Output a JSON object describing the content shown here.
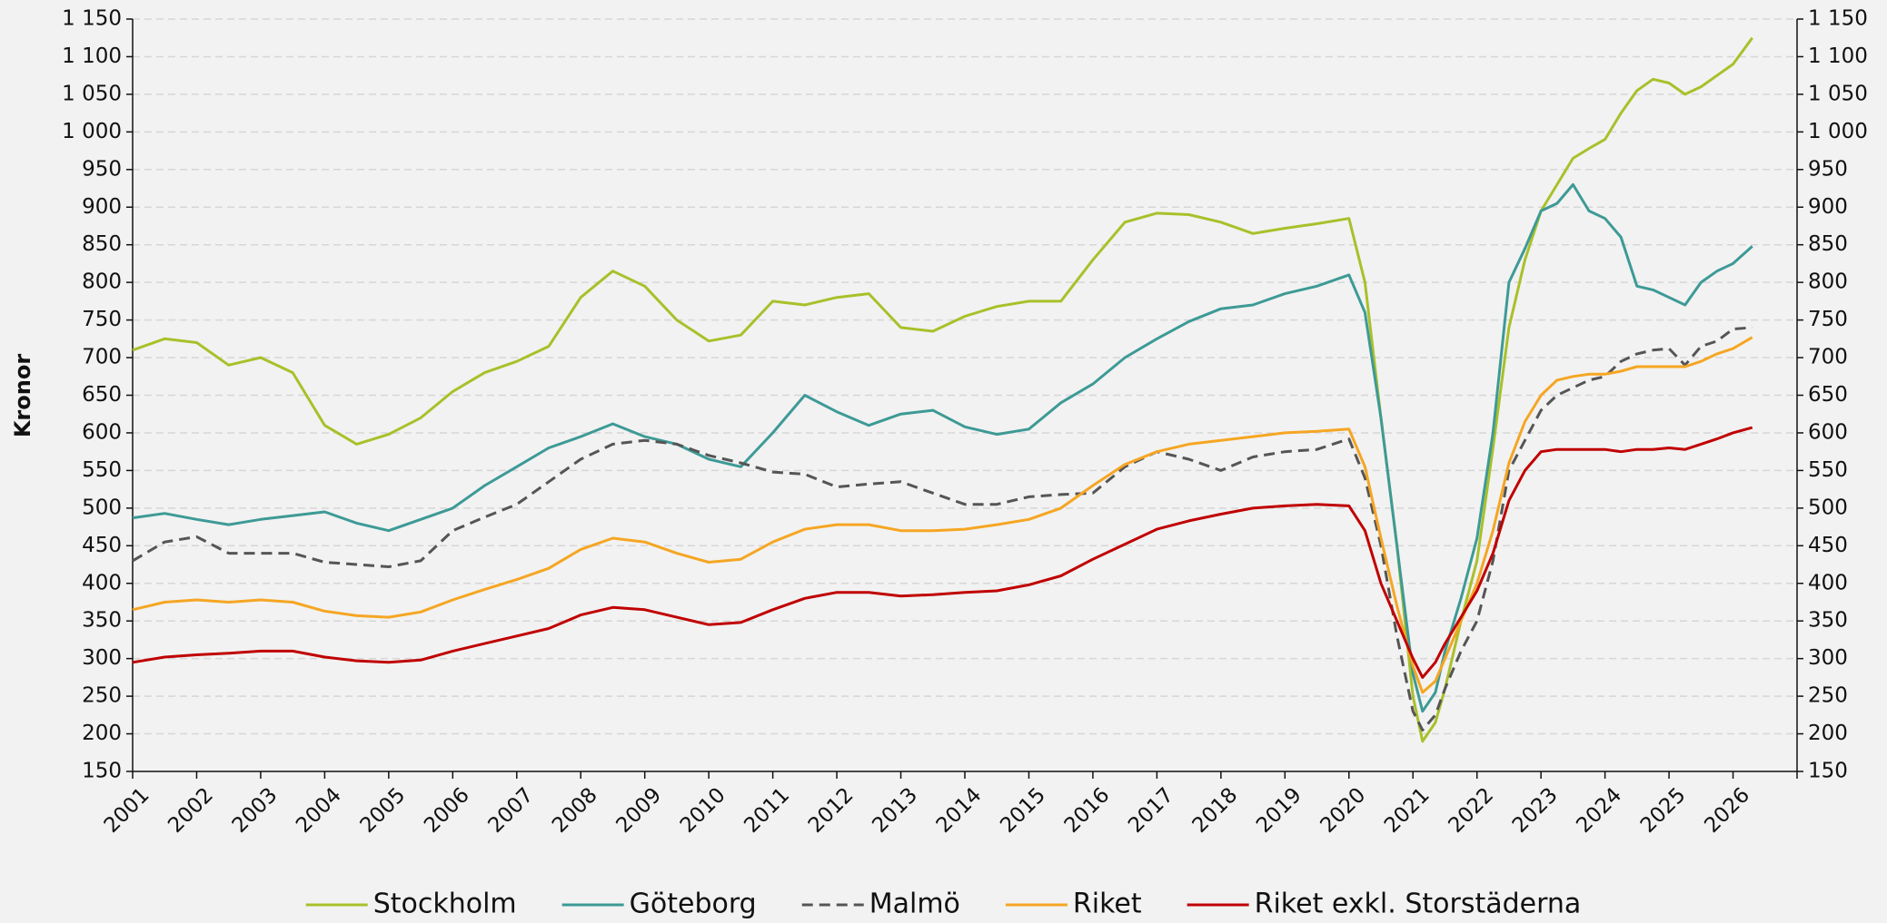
{
  "chart_data": {
    "type": "line",
    "y_label": "Kronor",
    "xlim": [
      2001,
      2027
    ],
    "xticks": [
      2001,
      2002,
      2003,
      2004,
      2005,
      2006,
      2007,
      2008,
      2009,
      2010,
      2011,
      2012,
      2013,
      2014,
      2015,
      2016,
      2017,
      2018,
      2019,
      2020,
      2021,
      2022,
      2023,
      2024,
      2025,
      2026
    ],
    "ylim": [
      150,
      1150
    ],
    "yticks": [
      150,
      200,
      250,
      300,
      350,
      400,
      450,
      500,
      550,
      600,
      650,
      700,
      750,
      800,
      850,
      900,
      950,
      {
        "value": 1000,
        "label": "1 000"
      },
      {
        "value": 1050,
        "label": "1 050"
      },
      {
        "value": 1100,
        "label": "1 100"
      },
      {
        "value": 1150,
        "label": "1 150"
      }
    ],
    "grid": true,
    "legend": "bottom",
    "x": [
      2001,
      2001.5,
      2002,
      2002.5,
      2003,
      2003.5,
      2004,
      2004.5,
      2005,
      2005.5,
      2006,
      2006.5,
      2007,
      2007.5,
      2008,
      2008.5,
      2009,
      2009.5,
      2010,
      2010.5,
      2011,
      2011.5,
      2012,
      2012.5,
      2013,
      2013.5,
      2014,
      2014.5,
      2015,
      2015.5,
      2016,
      2016.5,
      2017,
      2017.5,
      2018,
      2018.5,
      2019,
      2019.5,
      2020,
      2020.25,
      2020.5,
      2020.75,
      2021,
      2021.15,
      2021.35,
      2021.5,
      2021.75,
      2022,
      2022.25,
      2022.5,
      2022.75,
      2023,
      2023.25,
      2023.5,
      2023.75,
      2024,
      2024.25,
      2024.5,
      2024.75,
      2025,
      2025.25,
      2025.5,
      2025.75,
      2026,
      2026.3
    ],
    "series": [
      {
        "name": "Stockholm",
        "color": "#a9c02a",
        "dashed": false,
        "values": [
          710,
          725,
          720,
          690,
          700,
          680,
          610,
          585,
          598,
          620,
          655,
          680,
          695,
          715,
          780,
          815,
          795,
          750,
          722,
          730,
          775,
          770,
          780,
          785,
          740,
          735,
          755,
          768,
          775,
          775,
          830,
          880,
          892,
          890,
          880,
          865,
          872,
          878,
          885,
          800,
          620,
          450,
          250,
          190,
          215,
          260,
          350,
          430,
          580,
          740,
          830,
          895,
          930,
          965,
          978,
          990,
          1025,
          1055,
          1070,
          1065,
          1050,
          1060,
          1075,
          1090,
          1125
        ]
      },
      {
        "name": "Göteborg",
        "color": "#3d9a96",
        "dashed": false,
        "values": [
          487,
          493,
          485,
          478,
          485,
          490,
          495,
          480,
          470,
          485,
          500,
          530,
          555,
          580,
          595,
          612,
          595,
          585,
          565,
          555,
          600,
          650,
          628,
          610,
          625,
          630,
          608,
          598,
          605,
          640,
          665,
          700,
          725,
          748,
          765,
          770,
          785,
          795,
          810,
          760,
          620,
          450,
          280,
          230,
          255,
          310,
          380,
          460,
          600,
          800,
          845,
          895,
          905,
          930,
          895,
          885,
          860,
          795,
          790,
          780,
          770,
          800,
          815,
          825,
          848
        ]
      },
      {
        "name": "Malmö",
        "color": "#555555",
        "dashed": true,
        "values": [
          430,
          455,
          462,
          440,
          440,
          440,
          428,
          425,
          422,
          430,
          470,
          488,
          505,
          535,
          565,
          585,
          590,
          585,
          570,
          560,
          548,
          545,
          528,
          532,
          535,
          520,
          505,
          505,
          515,
          518,
          520,
          555,
          575,
          565,
          550,
          568,
          575,
          578,
          592,
          540,
          450,
          330,
          230,
          205,
          225,
          260,
          310,
          350,
          430,
          550,
          590,
          630,
          650,
          660,
          670,
          675,
          695,
          705,
          710,
          712,
          690,
          715,
          722,
          738,
          740
        ]
      },
      {
        "name": "Riket",
        "color": "#f5a623",
        "dashed": false,
        "values": [
          365,
          375,
          378,
          375,
          378,
          375,
          363,
          357,
          355,
          362,
          378,
          392,
          405,
          420,
          445,
          460,
          455,
          440,
          428,
          432,
          455,
          472,
          478,
          478,
          470,
          470,
          472,
          478,
          485,
          500,
          530,
          558,
          575,
          585,
          590,
          595,
          600,
          602,
          605,
          555,
          460,
          370,
          290,
          255,
          270,
          300,
          350,
          400,
          470,
          560,
          615,
          650,
          670,
          675,
          678,
          678,
          682,
          688,
          688,
          688,
          688,
          695,
          705,
          712,
          727
        ]
      },
      {
        "name": "Riket exkl. Storstäderna",
        "color": "#c00000",
        "dashed": false,
        "values": [
          295,
          302,
          305,
          307,
          310,
          310,
          302,
          297,
          295,
          298,
          310,
          320,
          330,
          340,
          358,
          368,
          365,
          355,
          345,
          348,
          365,
          380,
          388,
          388,
          383,
          385,
          388,
          390,
          398,
          410,
          432,
          452,
          472,
          483,
          492,
          500,
          503,
          505,
          503,
          470,
          400,
          350,
          300,
          275,
          295,
          320,
          355,
          390,
          440,
          510,
          550,
          575,
          578,
          578,
          578,
          578,
          575,
          578,
          578,
          580,
          578,
          585,
          592,
          600,
          607
        ]
      }
    ]
  }
}
